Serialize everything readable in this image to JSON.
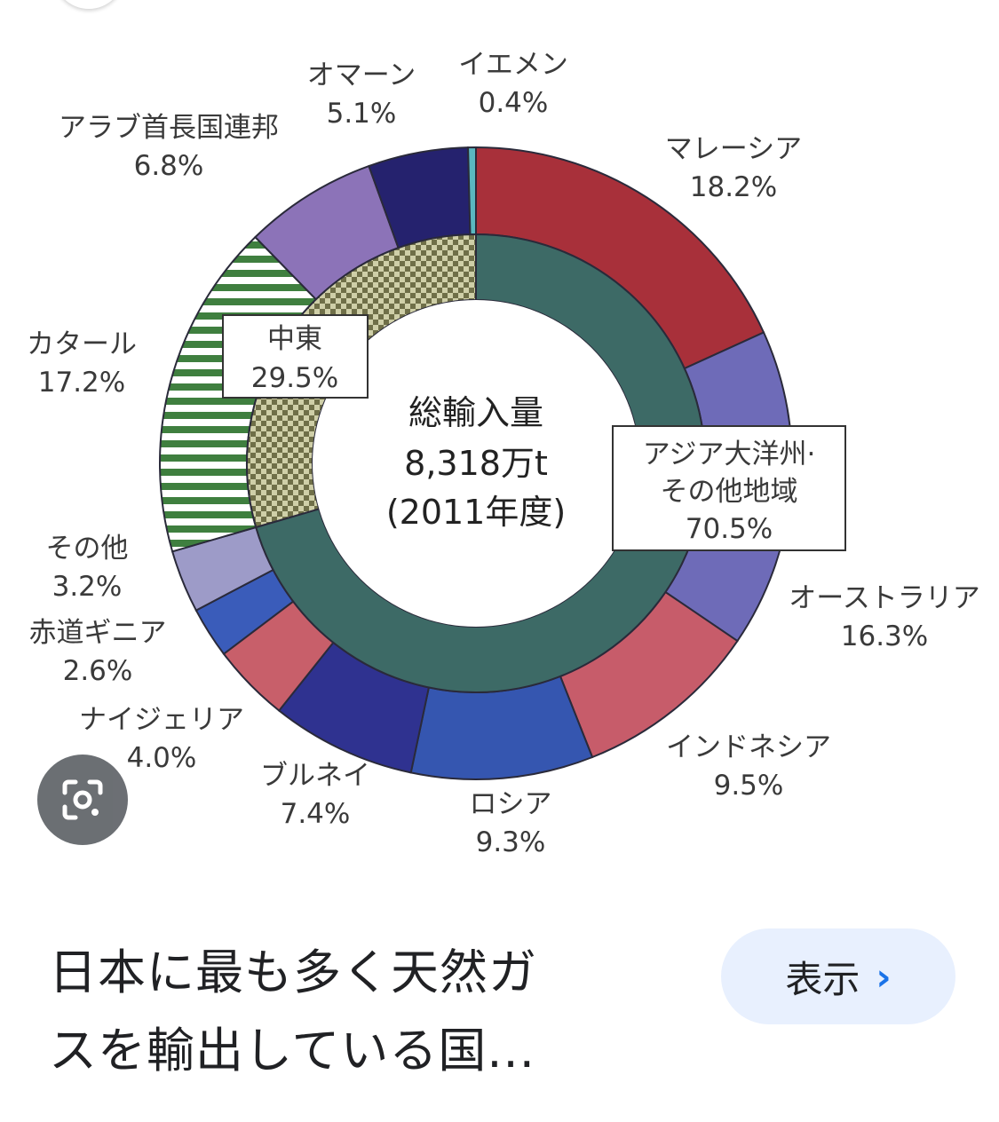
{
  "chart_data": {
    "type": "pie",
    "center": {
      "line1": "総輸入量",
      "line2": "8,318万t",
      "line3": "(2011年度)"
    },
    "inner_ring": [
      {
        "label": "中東",
        "value": 29.5,
        "color": "#c9c8a2"
      },
      {
        "label": "アジア大洋州・その他地域",
        "label_line1": "アジア大洋州·",
        "label_line2": "その他地域",
        "value": 70.5,
        "color": "#3d6a66"
      }
    ],
    "outer_ring": [
      {
        "label": "マレーシア",
        "value": 18.2,
        "color": "#a8303a"
      },
      {
        "label": "オーストラリア",
        "value": 16.3,
        "color": "#6e6bb8"
      },
      {
        "label": "インドネシア",
        "value": 9.5,
        "color": "#c75c6a"
      },
      {
        "label": "ロシア",
        "value": 9.3,
        "color": "#3556b0"
      },
      {
        "label": "ブルネイ",
        "value": 7.4,
        "color": "#2f3290"
      },
      {
        "label": "ナイジェリア",
        "value": 4.0,
        "color": "#c85f6a"
      },
      {
        "label": "赤道ギニア",
        "value": 2.6,
        "color": "#3a5cba"
      },
      {
        "label": "その他",
        "value": 3.2,
        "color": "#9d9bc8"
      },
      {
        "label": "カタール",
        "value": 17.2,
        "color": "#3a7a3a"
      },
      {
        "label": "アラブ首長国連邦",
        "value": 6.8,
        "color": "#8c73b8"
      },
      {
        "label": "オマーン",
        "value": 5.1,
        "color": "#25226e"
      },
      {
        "label": "イエメン",
        "value": 0.4,
        "color": "#5ab8c0"
      }
    ]
  },
  "caption": {
    "line1": "日本に最も多く天然ガ",
    "line2": "スを輸出している国..."
  },
  "show_button": {
    "label": "表示",
    "chevron": "›"
  },
  "icons": {
    "lens": "google-lens-icon"
  }
}
